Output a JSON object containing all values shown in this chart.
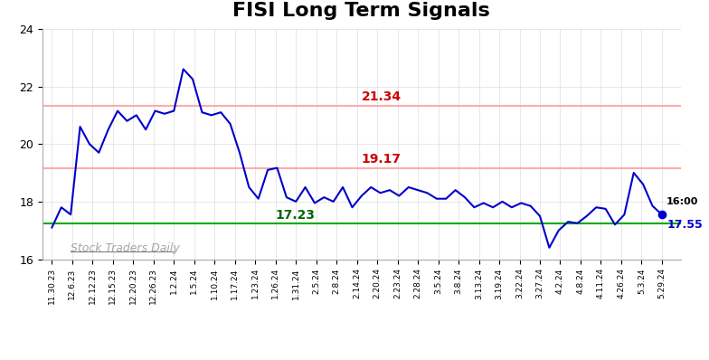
{
  "title": "FISI Long Term Signals",
  "title_fontsize": 16,
  "background_color": "#ffffff",
  "line_color": "#0000cc",
  "line_width": 1.5,
  "ylim": [
    16,
    24
  ],
  "yticks": [
    16,
    18,
    20,
    22,
    24
  ],
  "hline_upper": 21.34,
  "hline_mid": 19.17,
  "hline_lower": 17.23,
  "hline_upper_color": "#ffaaaa",
  "hline_mid_color": "#ffaaaa",
  "hline_lower_color": "#00aa00",
  "annotation_upper": "21.34",
  "annotation_mid": "19.17",
  "annotation_lower": "17.23",
  "annotation_upper_color": "#cc0000",
  "annotation_mid_color": "#cc0000",
  "annotation_lower_color": "#006600",
  "last_label": "16:00",
  "last_value_label": "17.55",
  "last_value_label_color": "#0000cc",
  "watermark": "Stock Traders Daily",
  "x_labels": [
    "11.30.23",
    "12.6.23",
    "12.12.23",
    "12.15.23",
    "12.20.23",
    "12.26.23",
    "1.2.24",
    "1.5.24",
    "1.10.24",
    "1.17.24",
    "1.23.24",
    "1.26.24",
    "1.31.24",
    "2.5.24",
    "2.8.24",
    "2.14.24",
    "2.20.24",
    "2.23.24",
    "2.28.24",
    "3.5.24",
    "3.8.24",
    "3.13.24",
    "3.19.24",
    "3.22.24",
    "3.27.24",
    "4.2.24",
    "4.8.24",
    "4.11.24",
    "4.26.24",
    "5.3.24",
    "5.29.24"
  ],
  "prices": [
    17.1,
    17.8,
    17.55,
    20.6,
    20.0,
    19.7,
    20.5,
    21.15,
    20.8,
    21.0,
    20.5,
    21.15,
    21.05,
    21.15,
    22.6,
    22.25,
    21.1,
    21.0,
    21.1,
    20.7,
    19.7,
    18.5,
    18.1,
    19.1,
    19.17,
    18.15,
    18.0,
    18.5,
    17.95,
    18.15,
    18.0,
    18.5,
    17.8,
    18.2,
    18.5,
    18.3,
    18.4,
    18.2,
    18.5,
    18.4,
    18.3,
    18.1,
    18.1,
    18.4,
    18.15,
    17.8,
    17.95,
    17.8,
    18.0,
    17.8,
    17.95,
    17.85,
    17.5,
    16.4,
    17.0,
    17.3,
    17.25,
    17.5,
    17.8,
    17.75,
    17.2,
    17.55,
    19.0,
    18.6,
    17.85,
    17.55
  ]
}
